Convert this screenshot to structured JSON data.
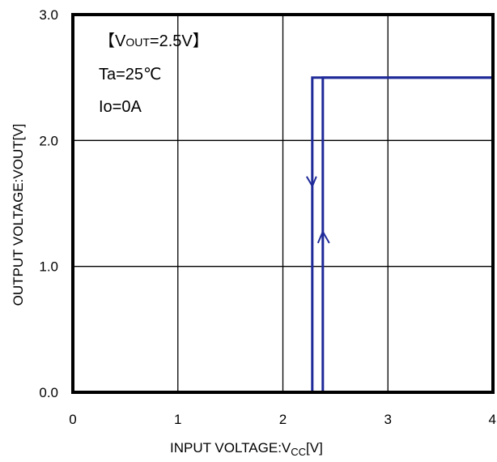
{
  "chart_data": {
    "type": "line",
    "xlabel": "INPUT VOLTAGE:V",
    "xlabel_sub": "CC",
    "xlabel_unit": "[V]",
    "ylabel": "OUTPUT VOLTAGE:VOUT[V]",
    "xlim": [
      0,
      4
    ],
    "ylim": [
      0,
      3
    ],
    "x_ticks": [
      0,
      1,
      2,
      3,
      4
    ],
    "x_tick_labels": [
      "0",
      "1",
      "2",
      "3",
      "4"
    ],
    "y_ticks": [
      0,
      1,
      2,
      3
    ],
    "y_tick_labels": [
      "0.0",
      "1.0",
      "2.0",
      "3.0"
    ],
    "grid": true,
    "line_color": "#1f2a99",
    "annotations": {
      "condition_vout_prefix": "【V",
      "condition_vout_sub": "OUT",
      "condition_vout_suffix": "=2.5V】",
      "condition_ta": "Ta=25℃",
      "condition_io": "Io=0A"
    },
    "series": [
      {
        "direction": "rising",
        "x": [
          0,
          2.38,
          2.38,
          4
        ],
        "y": [
          0,
          0,
          2.5,
          2.5
        ]
      },
      {
        "direction": "falling",
        "x": [
          4,
          2.28,
          2.28,
          0
        ],
        "y": [
          2.5,
          2.5,
          0,
          0
        ]
      }
    ],
    "arrows": [
      {
        "direction": "down",
        "x": 2.28,
        "y": 1.65
      },
      {
        "direction": "up",
        "x": 2.38,
        "y": 1.25
      }
    ]
  }
}
